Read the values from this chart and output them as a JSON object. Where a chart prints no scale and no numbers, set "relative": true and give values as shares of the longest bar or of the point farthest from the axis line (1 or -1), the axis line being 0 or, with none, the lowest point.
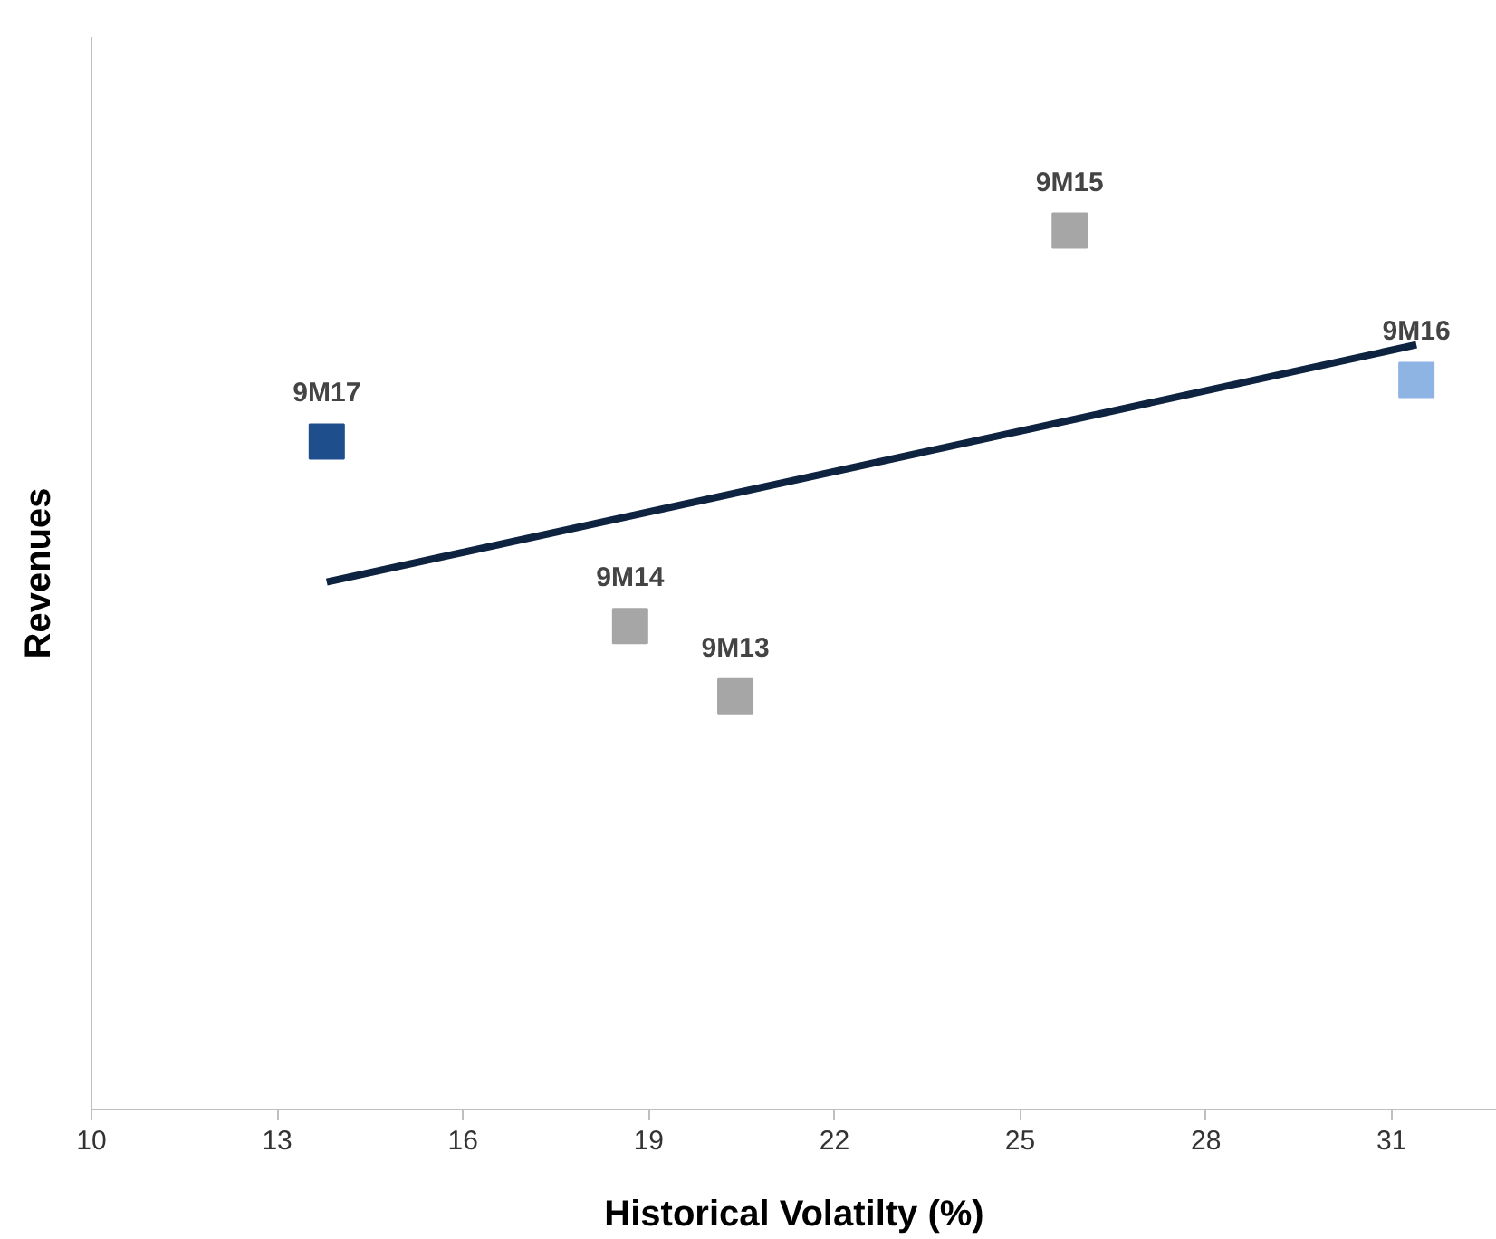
{
  "chart_data": {
    "type": "scatter",
    "relative": true,
    "xlabel": "Historical Volatilty (%)",
    "ylabel": "Revenues",
    "xlim": [
      10,
      32.7
    ],
    "xticks": [
      10,
      13,
      16,
      19,
      22,
      25,
      28,
      31
    ],
    "marker": "square",
    "grid": false,
    "tick_labels": "x",
    "series": [
      {
        "name": "9M17",
        "color": "#1f4e8c",
        "x": [
          13.8
        ],
        "values": [
          0.76
        ]
      },
      {
        "name": "9M14",
        "color": "#a6a6a6",
        "x": [
          18.7
        ],
        "values": [
          0.55
        ]
      },
      {
        "name": "9M13",
        "color": "#a6a6a6",
        "x": [
          20.4
        ],
        "values": [
          0.47
        ]
      },
      {
        "name": "9M15",
        "color": "#a6a6a6",
        "x": [
          25.8
        ],
        "values": [
          1
        ]
      },
      {
        "name": "9M16",
        "color": "#8db4e2",
        "x": [
          31.4
        ],
        "values": [
          0.83
        ]
      },
      {
        "type": "line",
        "marker": "none",
        "color": "#0d2340",
        "x": [
          13.8,
          31.4
        ],
        "values": [
          0.6,
          0.87
        ]
      }
    ]
  }
}
